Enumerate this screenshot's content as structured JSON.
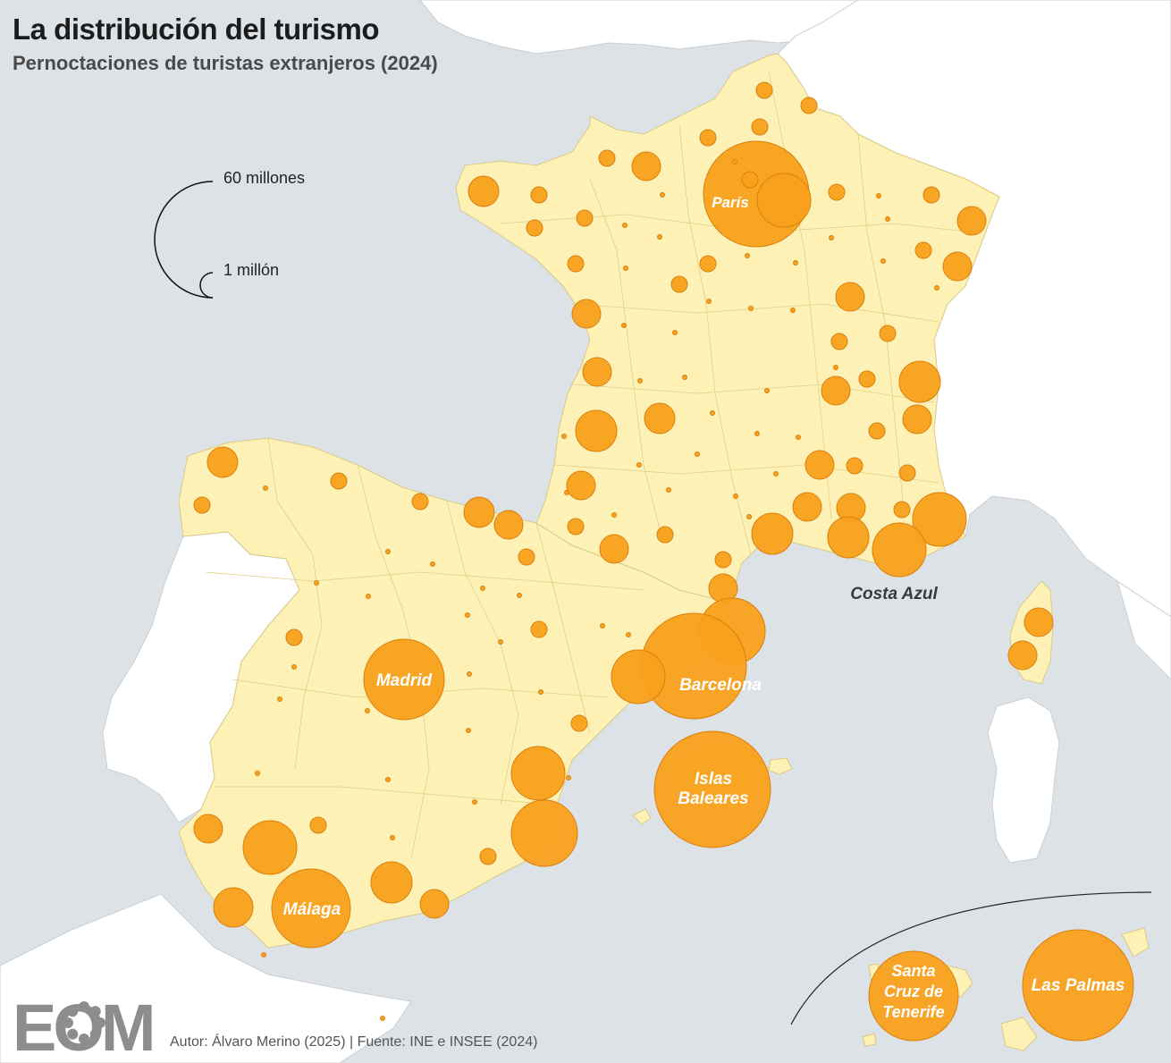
{
  "header": {
    "title": "La distribución del turismo",
    "subtitle": "Pernoctaciones de turistas extranjeros (2024)"
  },
  "legend": {
    "max_label": "60 millones",
    "min_label": "1 millón"
  },
  "labels": {
    "paris": "París",
    "costa_azul": "Costa Azul",
    "madrid": "Madrid",
    "barcelona": "Barcelona",
    "baleares_1": "Islas",
    "baleares_2": "Baleares",
    "malaga": "Málaga",
    "tenerife_1": "Santa",
    "tenerife_2": "Cruz de",
    "tenerife_3": "Tenerife",
    "las_palmas": "Las Palmas"
  },
  "logo": {
    "text": "EOM"
  },
  "credit": "Autor: Álvaro Merino (2025) | Fuente: INE e INSEE (2024)",
  "colors": {
    "sea": "#dde2e6",
    "land_highlight": "#fdf1b6",
    "land_other": "#ffffff",
    "bubble": "#f9a01c",
    "bubble_stroke": "#d9800c"
  }
}
